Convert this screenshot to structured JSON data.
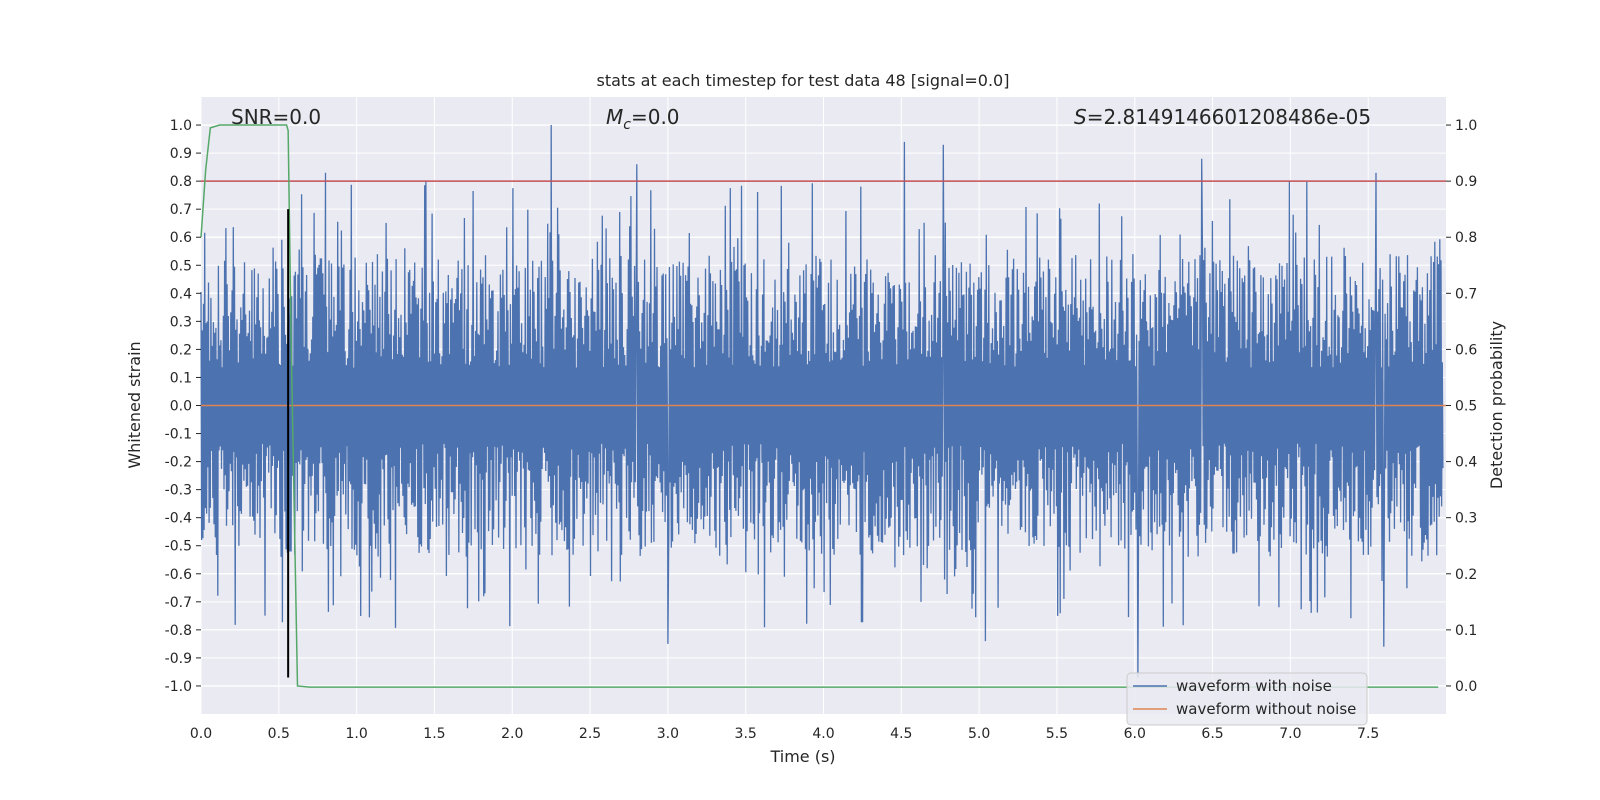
{
  "chart_data": {
    "type": "line",
    "title": "stats at each timestep for test data 48 [signal=0.0]",
    "xlabel": "Time (s)",
    "ylabel": "Whitened strain",
    "ylabel_right": "Detection probability",
    "xlim": [
      0.0,
      8.0
    ],
    "ylim": [
      -1.1,
      1.1
    ],
    "ylim_right": [
      -0.05,
      1.05
    ],
    "xticks": [
      "0.0",
      "0.5",
      "1.0",
      "1.5",
      "2.0",
      "2.5",
      "3.0",
      "3.5",
      "4.0",
      "4.5",
      "5.0",
      "5.5",
      "6.0",
      "6.5",
      "7.0",
      "7.5"
    ],
    "yticks": [
      "1.0",
      "0.9",
      "0.8",
      "0.7",
      "0.6",
      "0.5",
      "0.4",
      "0.3",
      "0.2",
      "0.1",
      "0.0",
      "-0.1",
      "-0.2",
      "-0.3",
      "-0.4",
      "-0.5",
      "-0.6",
      "-0.7",
      "-0.8",
      "-0.9",
      "-1.0"
    ],
    "yticks_right": [
      "1.0",
      "0.9",
      "0.8",
      "0.7",
      "0.6",
      "0.5",
      "0.4",
      "0.3",
      "0.2",
      "0.1",
      "0.0"
    ],
    "annotations": {
      "snr": "SNR=0.0",
      "mc_symbol": "M",
      "mc_sub": "c",
      "mc_value": "=0.0",
      "s_symbol": "S",
      "s_value": "=2.8149146601208486e-05"
    },
    "series": [
      {
        "name": "waveform with noise",
        "color": "#4c72b0",
        "axis": "left",
        "description": "noisy whitened strain, amplitude roughly within ±0.6 with spikes up to 1.0 / -0.97",
        "envelope_typical": 0.45,
        "peaks": [
          [
            2.25,
            1.0
          ],
          [
            4.52,
            0.94
          ],
          [
            4.77,
            0.93
          ],
          [
            6.43,
            0.88
          ],
          [
            0.8,
            0.83
          ],
          [
            7.55,
            0.83
          ],
          [
            2.8,
            0.86
          ],
          [
            6.02,
            -0.97
          ],
          [
            3.0,
            -0.85
          ],
          [
            5.04,
            -0.84
          ],
          [
            7.6,
            -0.86
          ]
        ]
      },
      {
        "name": "waveform without noise",
        "color": "#dd8452",
        "axis": "left",
        "x": [
          0.0,
          8.0
        ],
        "y": [
          0.0,
          0.0
        ]
      },
      {
        "name": "detection probability",
        "color": "#55a868",
        "axis": "right",
        "x": [
          0.0,
          0.03,
          0.06,
          0.12,
          0.2,
          0.4,
          0.55,
          0.56,
          0.58,
          0.62,
          0.7,
          8.0
        ],
        "y": [
          0.8,
          0.92,
          0.995,
          1.0,
          1.0,
          1.0,
          1.0,
          0.99,
          0.6,
          0.0,
          -0.002,
          -0.002
        ]
      },
      {
        "name": "threshold",
        "color": "#c44e52",
        "axis": "right",
        "x": [
          0.0,
          8.0
        ],
        "y": [
          0.9,
          0.9
        ]
      },
      {
        "name": "marker",
        "color": "#000000",
        "axis": "left",
        "x": [
          0.56,
          0.56
        ],
        "y": [
          0.7,
          -0.97
        ]
      }
    ],
    "legend": [
      "waveform with noise",
      "waveform without noise"
    ],
    "legend_position": "lower-right",
    "grid": true,
    "colors": {
      "axes_bg": "#eaeaf2",
      "grid": "#ffffff"
    }
  }
}
